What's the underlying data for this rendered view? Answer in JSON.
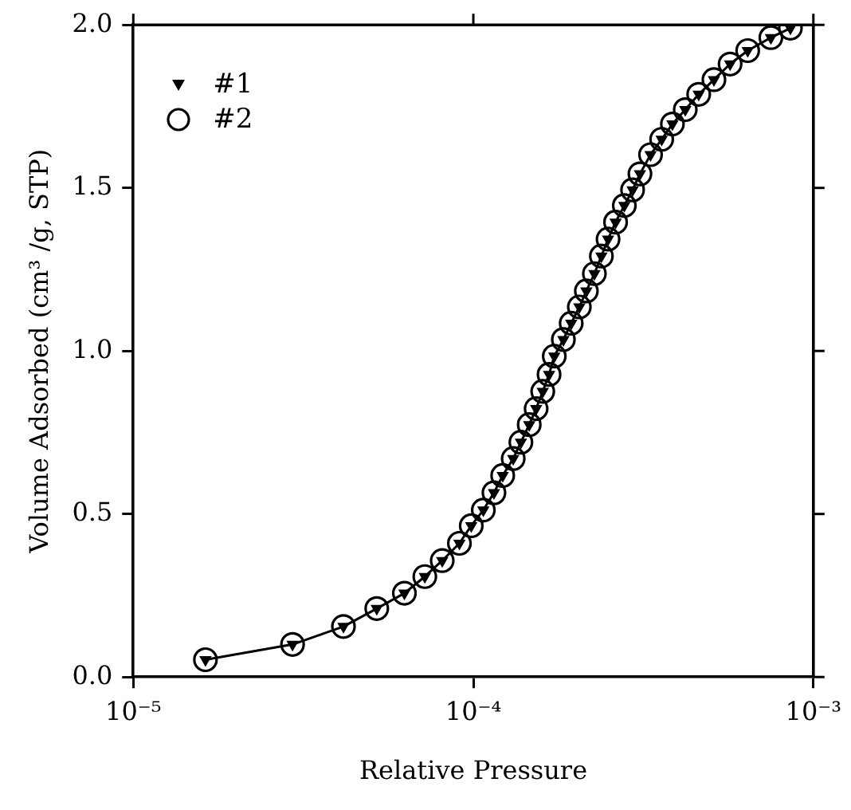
{
  "chart_data": {
    "type": "line",
    "xlabel": "Relative Pressure",
    "ylabel": "Volume Adsorbed (cm³ /g, STP)",
    "x": [
      1.63e-05,
      2.94e-05,
      4.15e-05,
      5.2e-05,
      6.27e-05,
      7.2e-05,
      8.1e-05,
      9.1e-05,
      9.86e-05,
      0.000107,
      0.000115,
      0.000122,
      0.000131,
      0.000138,
      0.000146,
      0.000153,
      0.00016,
      0.000167,
      0.000173,
      0.000184,
      0.000194,
      0.000205,
      0.000215,
      0.000227,
      0.000238,
      0.000249,
      0.000262,
      0.000278,
      0.000294,
      0.000309,
      0.000332,
      0.000358,
      0.000385,
      0.00042,
      0.00046,
      0.00051,
      0.000569,
      0.000641,
      0.00075,
      0.000856
    ],
    "series": [
      {
        "name": "#1",
        "color": "#000000",
        "marker": "triangle",
        "line_style": "solid",
        "values": [
          0.053,
          0.1,
          0.155,
          0.21,
          0.257,
          0.308,
          0.357,
          0.41,
          0.464,
          0.512,
          0.565,
          0.618,
          0.67,
          0.72,
          0.774,
          0.823,
          0.876,
          0.928,
          0.984,
          1.035,
          1.085,
          1.135,
          1.184,
          1.237,
          1.291,
          1.343,
          1.395,
          1.446,
          1.494,
          1.543,
          1.602,
          1.649,
          1.696,
          1.74,
          1.787,
          1.832,
          1.88,
          1.921,
          1.961,
          1.99
        ]
      },
      {
        "name": "#2",
        "type": "scatter",
        "color": "#000000",
        "marker": "circle",
        "values": [
          0.053,
          0.1,
          0.155,
          0.21,
          0.257,
          0.308,
          0.357,
          0.41,
          0.464,
          0.512,
          0.565,
          0.618,
          0.67,
          0.72,
          0.774,
          0.823,
          0.876,
          0.928,
          0.984,
          1.035,
          1.085,
          1.135,
          1.184,
          1.237,
          1.291,
          1.343,
          1.395,
          1.446,
          1.494,
          1.543,
          1.602,
          1.649,
          1.696,
          1.74,
          1.787,
          1.832,
          1.88,
          1.921,
          1.961,
          1.99
        ]
      }
    ],
    "log": "x",
    "xlim": [
      1e-05,
      0.001
    ],
    "xticks": [
      {
        "value": 1e-05,
        "label": "10⁻⁵"
      },
      {
        "value": 0.0001,
        "label": "10⁻⁴"
      },
      {
        "value": 0.001,
        "label": "10⁻³"
      }
    ],
    "ylim": [
      0,
      2
    ],
    "yticks": [
      {
        "value": 0,
        "label": "0.0"
      },
      {
        "value": 0.5,
        "label": "0.5"
      },
      {
        "value": 1,
        "label": "1.0"
      },
      {
        "value": 1.5,
        "label": "1.5"
      },
      {
        "value": 2,
        "label": "2.0"
      }
    ],
    "grid": false,
    "legend": "top left"
  }
}
